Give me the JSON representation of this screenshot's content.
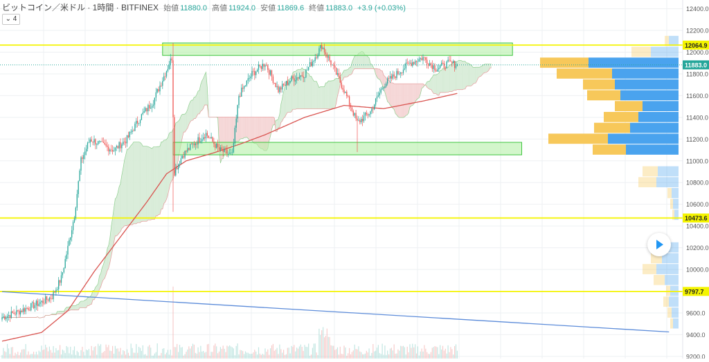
{
  "header": {
    "symbol": "ビットコイン／米ドル · 1時間 · BITFINEX",
    "open_label": "始値",
    "open": "11880.0",
    "high_label": "高値",
    "high": "11924.0",
    "low_label": "安値",
    "low": "11869.6",
    "close_label": "終値",
    "close": "11883.0",
    "change": "+3.9 (+0.03%)",
    "collapse": "⌄ 4"
  },
  "colors": {
    "up": "#26a69a",
    "down": "#ef5350",
    "hline": "#f4f400",
    "zone_fill": "#b6f0a8",
    "zone_border": "#3cc43c",
    "ma": "#d9534f",
    "trend": "#5b8bd9",
    "vp_blue": "#4aa3ee",
    "vp_orange": "#f7c85a",
    "cloud_green": "#d8ecd8",
    "cloud_red": "#f5d6d6",
    "price_badge": "#26a69a"
  },
  "chart_data": {
    "type": "candlestick",
    "symbol": "BTCUSD",
    "exchange": "BITFINEX",
    "interval": "1時間",
    "ylim": [
      9180,
      12480
    ],
    "y_ticks": [
      9200,
      9400,
      9600,
      9800,
      10000,
      10200,
      10400,
      10600,
      10800,
      11000,
      11200,
      11400,
      11600,
      11800,
      12000,
      12200,
      12400
    ],
    "y_tick_labels": [
      "9200.0",
      "9400.0",
      "9600.0",
      "9800.0",
      "10000.0",
      "10200.0",
      "10400.0",
      "10600.0",
      "10800.0",
      "11000.0",
      "11200.0",
      "11400.0",
      "11600.0",
      "11800.0",
      "12000.0",
      "12200.0",
      "12400.0"
    ],
    "horizontal_lines": [
      {
        "price": 12064.9,
        "label": "12064.9"
      },
      {
        "price": 10473.6,
        "label": "10473.6"
      },
      {
        "price": 9797.7,
        "label": "9797.7"
      }
    ],
    "current_price": {
      "price": 11883.0,
      "label": "11883.0"
    },
    "zones": [
      {
        "top": 12085,
        "bottom": 11970,
        "from_bar": 122,
        "to_bar": 388
      },
      {
        "top": 11170,
        "bottom": 11055,
        "from_bar": 130,
        "to_bar": 395
      }
    ],
    "trend_line": {
      "from": [
        0,
        9795
      ],
      "to": [
        507,
        9425
      ]
    },
    "price_path": [
      [
        0,
        9560
      ],
      [
        10,
        9600
      ],
      [
        20,
        9650
      ],
      [
        30,
        9700
      ],
      [
        38,
        9750
      ],
      [
        45,
        9920
      ],
      [
        50,
        10200
      ],
      [
        55,
        10500
      ],
      [
        60,
        11000
      ],
      [
        67,
        11200
      ],
      [
        75,
        11150
      ],
      [
        85,
        11100
      ],
      [
        95,
        11200
      ],
      [
        105,
        11400
      ],
      [
        115,
        11550
      ],
      [
        122,
        11750
      ],
      [
        129,
        11950
      ],
      [
        131,
        10900
      ],
      [
        137,
        11050
      ],
      [
        145,
        11150
      ],
      [
        155,
        11250
      ],
      [
        165,
        11100
      ],
      [
        175,
        11050
      ],
      [
        180,
        11600
      ],
      [
        190,
        11800
      ],
      [
        200,
        11900
      ],
      [
        210,
        11650
      ],
      [
        220,
        11750
      ],
      [
        230,
        11800
      ],
      [
        243,
        12060
      ],
      [
        250,
        11900
      ],
      [
        260,
        11650
      ],
      [
        270,
        11350
      ],
      [
        280,
        11450
      ],
      [
        290,
        11700
      ],
      [
        300,
        11800
      ],
      [
        310,
        11900
      ],
      [
        320,
        11950
      ],
      [
        330,
        11850
      ],
      [
        340,
        11900
      ],
      [
        346,
        11883
      ]
    ],
    "ma_path": [
      [
        0,
        9340
      ],
      [
        30,
        9420
      ],
      [
        50,
        9620
      ],
      [
        70,
        9980
      ],
      [
        90,
        10300
      ],
      [
        110,
        10620
      ],
      [
        125,
        10880
      ],
      [
        140,
        11000
      ],
      [
        160,
        11070
      ],
      [
        180,
        11150
      ],
      [
        200,
        11240
      ],
      [
        230,
        11400
      ],
      [
        260,
        11510
      ],
      [
        290,
        11480
      ],
      [
        320,
        11550
      ],
      [
        346,
        11620
      ]
    ],
    "volume_profile": [
      {
        "price": 12100,
        "up": 6,
        "down": 14
      },
      {
        "price": 12000,
        "up": 28,
        "down": 40
      },
      {
        "price": 11900,
        "up": 70,
        "down": 130
      },
      {
        "price": 11800,
        "up": 80,
        "down": 96
      },
      {
        "price": 11700,
        "up": 46,
        "down": 92
      },
      {
        "price": 11600,
        "up": 48,
        "down": 84
      },
      {
        "price": 11500,
        "up": 40,
        "down": 52
      },
      {
        "price": 11400,
        "up": 50,
        "down": 58
      },
      {
        "price": 11300,
        "up": 52,
        "down": 70
      },
      {
        "price": 11200,
        "up": 86,
        "down": 102
      },
      {
        "price": 11100,
        "up": 48,
        "down": 76
      },
      {
        "price": 10900,
        "up": 22,
        "down": 30
      },
      {
        "price": 10800,
        "up": 26,
        "down": 32
      },
      {
        "price": 10700,
        "up": 6,
        "down": 10
      },
      {
        "price": 10600,
        "up": 4,
        "down": 8
      },
      {
        "price": 10500,
        "up": 3,
        "down": 6
      },
      {
        "price": 10200,
        "up": 10,
        "down": 18
      },
      {
        "price": 10100,
        "up": 16,
        "down": 24
      },
      {
        "price": 10000,
        "up": 20,
        "down": 32
      },
      {
        "price": 9900,
        "up": 16,
        "down": 20
      },
      {
        "price": 9800,
        "up": 6,
        "down": 12
      },
      {
        "price": 9700,
        "up": 8,
        "down": 14
      },
      {
        "price": 9600,
        "up": 6,
        "down": 10
      },
      {
        "price": 9500,
        "up": 4,
        "down": 8
      }
    ]
  }
}
